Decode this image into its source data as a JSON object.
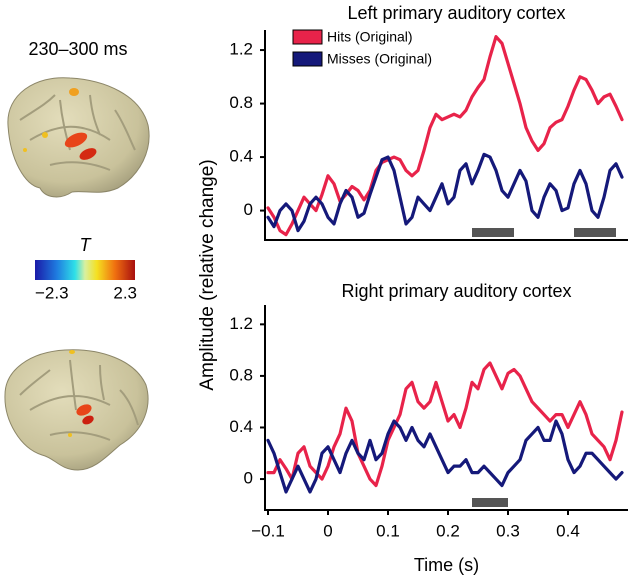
{
  "figure": {
    "time_window": "230–300 ms",
    "colorbar": {
      "label": "T",
      "lim": [
        -2.3,
        2.3
      ],
      "ticks": [
        {
          "value": -2.3,
          "label": "−2.3"
        },
        {
          "value": 2.3,
          "label": "2.3"
        }
      ]
    }
  },
  "chart_data": [
    {
      "type": "line",
      "title": "Left primary auditory cortex",
      "ylabel": "Amplitude (relative change)",
      "legend": "upper left",
      "x": [
        -0.1,
        -0.09,
        -0.08,
        -0.07,
        -0.06,
        -0.05,
        -0.04,
        -0.03,
        -0.02,
        -0.01,
        0,
        0.01,
        0.02,
        0.03,
        0.04,
        0.05,
        0.06,
        0.07,
        0.08,
        0.09,
        0.1,
        0.11,
        0.12,
        0.13,
        0.14,
        0.15,
        0.16,
        0.17,
        0.18,
        0.19,
        0.2,
        0.21,
        0.22,
        0.23,
        0.24,
        0.25,
        0.26,
        0.27,
        0.28,
        0.29,
        0.3,
        0.31,
        0.32,
        0.33,
        0.34,
        0.35,
        0.36,
        0.37,
        0.38,
        0.39,
        0.4,
        0.41,
        0.42,
        0.43,
        0.44,
        0.45,
        0.46,
        0.47,
        0.48,
        0.49
      ],
      "series": [
        {
          "name": "Hits (Original)",
          "color": "#e8234a",
          "values": [
            0.02,
            -0.05,
            -0.15,
            -0.18,
            -0.1,
            0,
            0.1,
            0.05,
            0,
            0.12,
            0.26,
            0.2,
            0.07,
            0.12,
            0.18,
            0.15,
            0.08,
            0.15,
            0.3,
            0.36,
            0.38,
            0.4,
            0.38,
            0.3,
            0.26,
            0.3,
            0.45,
            0.62,
            0.72,
            0.68,
            0.7,
            0.72,
            0.7,
            0.75,
            0.85,
            0.92,
            0.98,
            1.15,
            1.3,
            1.25,
            1.1,
            0.95,
            0.8,
            0.62,
            0.52,
            0.45,
            0.5,
            0.62,
            0.66,
            0.68,
            0.78,
            0.9,
            1.0,
            0.98,
            0.9,
            0.8,
            0.85,
            0.87,
            0.78,
            0.68
          ]
        },
        {
          "name": "Misses (Original)",
          "color": "#15197a",
          "values": [
            -0.05,
            -0.12,
            0,
            0.05,
            0,
            -0.15,
            -0.08,
            0.05,
            0.1,
            0.05,
            -0.05,
            -0.1,
            0.05,
            0.15,
            0.1,
            -0.05,
            -0.02,
            0.12,
            0.25,
            0.38,
            0.4,
            0.3,
            0.1,
            -0.1,
            -0.05,
            0.1,
            0.05,
            0,
            0.1,
            0.2,
            0.05,
            0.1,
            0.3,
            0.35,
            0.2,
            0.3,
            0.42,
            0.4,
            0.3,
            0.15,
            0.1,
            0.2,
            0.3,
            0.22,
            0,
            -0.05,
            0.1,
            0.2,
            0.15,
            0,
            0.02,
            0.2,
            0.3,
            0.2,
            0,
            -0.05,
            0.1,
            0.3,
            0.35,
            0.25
          ]
        }
      ],
      "significant_windows": [
        [
          0.24,
          0.31
        ],
        [
          0.41,
          0.48
        ]
      ],
      "xlim": [
        -0.105,
        0.5
      ],
      "ylim": [
        -0.22,
        1.35
      ],
      "yticks": [
        0,
        0.4,
        0.8,
        1.2
      ]
    },
    {
      "type": "line",
      "title": "Right primary auditory cortex",
      "xlabel": "Time (s)",
      "x": [
        -0.1,
        -0.09,
        -0.08,
        -0.07,
        -0.06,
        -0.05,
        -0.04,
        -0.03,
        -0.02,
        -0.01,
        0,
        0.01,
        0.02,
        0.03,
        0.04,
        0.05,
        0.06,
        0.07,
        0.08,
        0.09,
        0.1,
        0.11,
        0.12,
        0.13,
        0.14,
        0.15,
        0.16,
        0.17,
        0.18,
        0.19,
        0.2,
        0.21,
        0.22,
        0.23,
        0.24,
        0.25,
        0.26,
        0.27,
        0.28,
        0.29,
        0.3,
        0.31,
        0.32,
        0.33,
        0.34,
        0.35,
        0.36,
        0.37,
        0.38,
        0.39,
        0.4,
        0.41,
        0.42,
        0.43,
        0.44,
        0.45,
        0.46,
        0.47,
        0.48,
        0.49
      ],
      "series": [
        {
          "color": "#e8234a",
          "values": [
            0.05,
            0.05,
            0.15,
            0.08,
            0,
            0.2,
            0.25,
            0.1,
            0.05,
            0,
            0.1,
            0.25,
            0.35,
            0.55,
            0.45,
            0.2,
            0.1,
            0,
            -0.05,
            0.1,
            0.3,
            0.4,
            0.5,
            0.7,
            0.75,
            0.6,
            0.55,
            0.6,
            0.75,
            0.6,
            0.45,
            0.5,
            0.4,
            0.55,
            0.75,
            0.7,
            0.85,
            0.9,
            0.8,
            0.7,
            0.82,
            0.85,
            0.8,
            0.7,
            0.6,
            0.55,
            0.5,
            0.45,
            0.5,
            0.5,
            0.4,
            0.5,
            0.6,
            0.5,
            0.35,
            0.3,
            0.25,
            0.15,
            0.3,
            0.52
          ]
        },
        {
          "color": "#15197a",
          "values": [
            0.3,
            0.2,
            0.05,
            -0.1,
            0,
            0.1,
            0,
            -0.1,
            0,
            0.2,
            0.25,
            0.15,
            0.05,
            0.2,
            0.3,
            0.2,
            0.15,
            0.3,
            0.15,
            0.2,
            0.35,
            0.45,
            0.4,
            0.3,
            0.4,
            0.3,
            0.25,
            0.35,
            0.25,
            0.15,
            0.05,
            0.1,
            0.1,
            0.15,
            0.05,
            0.05,
            0.1,
            0.05,
            0,
            -0.05,
            0.05,
            0.1,
            0.15,
            0.3,
            0.35,
            0.4,
            0.3,
            0.3,
            0.45,
            0.35,
            0.15,
            0.05,
            0.1,
            0.2,
            0.2,
            0.15,
            0.1,
            0.05,
            0,
            0.05
          ]
        }
      ],
      "significant_windows": [
        [
          0.24,
          0.3
        ]
      ],
      "xlim": [
        -0.105,
        0.5
      ],
      "ylim": [
        -0.24,
        1.35
      ],
      "xticks": [
        {
          "value": -0.1,
          "label": "−0.1"
        },
        0,
        0.1,
        0.2,
        0.3,
        0.4
      ],
      "yticks": [
        0,
        0.4,
        0.8,
        1.2
      ]
    }
  ]
}
